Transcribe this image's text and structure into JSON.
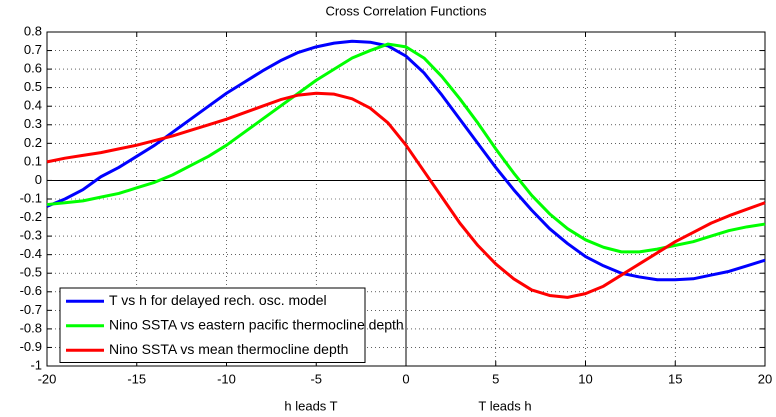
{
  "chart_data": {
    "type": "line",
    "title": "Cross Correlation Functions",
    "x": [
      -20,
      -19,
      -18,
      -17,
      -16,
      -15,
      -14,
      -13,
      -12,
      -11,
      -10,
      -9,
      -8,
      -7,
      -6,
      -5,
      -4,
      -3,
      -2,
      -1,
      0,
      1,
      2,
      3,
      4,
      5,
      6,
      7,
      8,
      9,
      10,
      11,
      12,
      13,
      14,
      15,
      16,
      17,
      18,
      19,
      20
    ],
    "series": [
      {
        "name": "T vs h for delayed rech. osc. model",
        "color": "#0000ff",
        "values": [
          -0.14,
          -0.1,
          -0.05,
          0.02,
          0.07,
          0.13,
          0.19,
          0.26,
          0.33,
          0.4,
          0.47,
          0.53,
          0.59,
          0.645,
          0.69,
          0.72,
          0.74,
          0.75,
          0.745,
          0.725,
          0.67,
          0.58,
          0.46,
          0.33,
          0.2,
          0.07,
          -0.05,
          -0.16,
          -0.26,
          -0.34,
          -0.41,
          -0.46,
          -0.5,
          -0.52,
          -0.535,
          -0.535,
          -0.53,
          -0.51,
          -0.49,
          -0.46,
          -0.43
        ]
      },
      {
        "name": "Nino SSTA vs eastern pacific thermocline depth",
        "color": "#00ff00",
        "values": [
          -0.13,
          -0.12,
          -0.11,
          -0.09,
          -0.07,
          -0.04,
          -0.01,
          0.03,
          0.08,
          0.13,
          0.19,
          0.26,
          0.33,
          0.4,
          0.47,
          0.54,
          0.6,
          0.66,
          0.7,
          0.735,
          0.72,
          0.66,
          0.56,
          0.44,
          0.31,
          0.17,
          0.04,
          -0.08,
          -0.18,
          -0.26,
          -0.32,
          -0.36,
          -0.385,
          -0.385,
          -0.37,
          -0.35,
          -0.33,
          -0.3,
          -0.27,
          -0.25,
          -0.235
        ]
      },
      {
        "name": "Nino SSTA vs mean thermocline depth",
        "color": "#ff0000",
        "values": [
          0.1,
          0.12,
          0.135,
          0.15,
          0.17,
          0.19,
          0.215,
          0.24,
          0.27,
          0.3,
          0.33,
          0.365,
          0.4,
          0.435,
          0.46,
          0.47,
          0.465,
          0.44,
          0.39,
          0.31,
          0.19,
          0.05,
          -0.09,
          -0.23,
          -0.35,
          -0.45,
          -0.53,
          -0.59,
          -0.62,
          -0.63,
          -0.61,
          -0.57,
          -0.51,
          -0.45,
          -0.39,
          -0.33,
          -0.28,
          -0.23,
          -0.19,
          -0.155,
          -0.12
        ]
      }
    ],
    "xlim": [
      -20,
      20
    ],
    "xticks": [
      -20,
      -15,
      -10,
      -5,
      0,
      5,
      10,
      15,
      20
    ],
    "ylim": [
      -1,
      0.8
    ],
    "yticks": [
      -1,
      -0.9,
      -0.8,
      -0.7,
      -0.6,
      -0.5,
      -0.4,
      -0.3,
      -0.2,
      -0.1,
      0,
      0.1,
      0.2,
      0.3,
      0.4,
      0.5,
      0.6,
      0.7,
      0.8
    ],
    "x_axis_labels": [
      "h leads T",
      "T leads h"
    ],
    "grid": true,
    "zero_lines": true,
    "legend": "lower-left"
  }
}
